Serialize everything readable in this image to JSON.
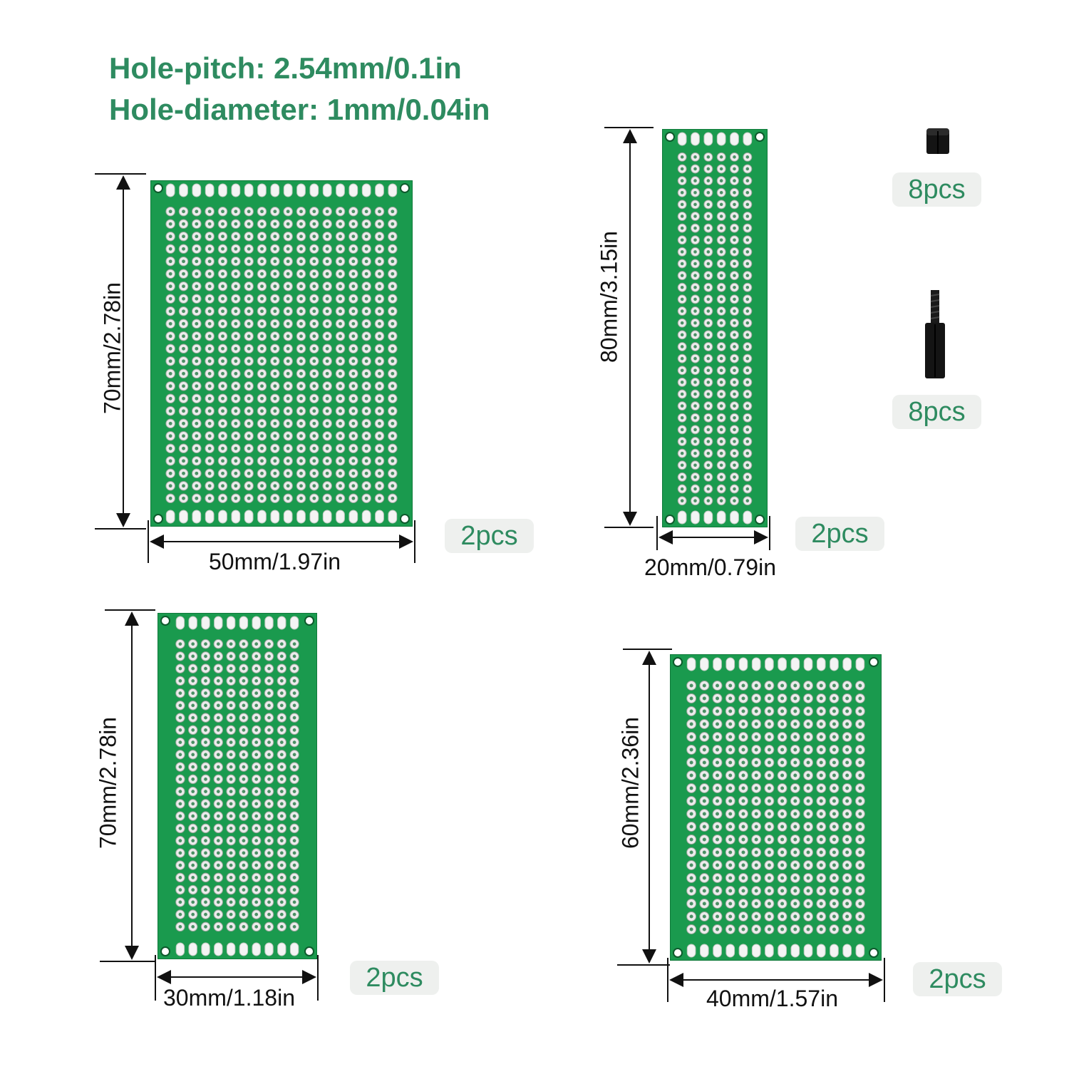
{
  "specs": {
    "pitch": "Hole-pitch: 2.54mm/0.1in",
    "diameter": "Hole-diameter: 1mm/0.04in"
  },
  "colors": {
    "accent": "#2e8b60",
    "board": "#1a9a4e",
    "pad": "#f2f2f2"
  },
  "boards": {
    "b50x70": {
      "width": "50mm/1.97in",
      "height": "70mm/2.78in",
      "qty": "2pcs",
      "cols": 18,
      "rows": 24
    },
    "b20x80": {
      "width": "20mm/0.79in",
      "height": "80mm/3.15in",
      "qty": "2pcs",
      "cols": 6,
      "rows": 30
    },
    "b30x70": {
      "width": "30mm/1.18in",
      "height": "70mm/2.78in",
      "qty": "2pcs",
      "cols": 10,
      "rows": 24
    },
    "b40x60": {
      "width": "40mm/1.57in",
      "height": "60mm/2.36in",
      "qty": "2pcs",
      "cols": 14,
      "rows": 20
    }
  },
  "accessories": {
    "nut": {
      "qty": "8pcs",
      "icon": "hex-nut-icon"
    },
    "standoff": {
      "qty": "8pcs",
      "icon": "standoff-icon"
    }
  }
}
